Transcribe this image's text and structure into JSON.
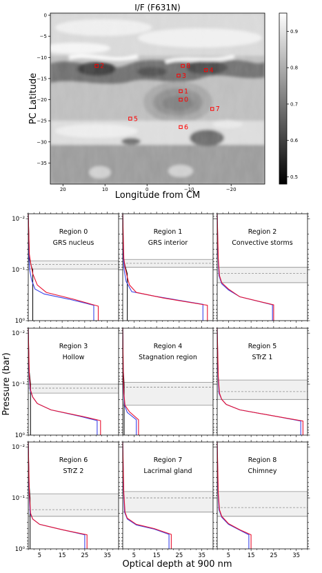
{
  "chart_data": [
    {
      "type": "heatmap",
      "title": "I/F (F631N)",
      "xlabel": "Longitude from CM",
      "ylabel": "PC Latitude",
      "xlim": [
        23,
        -28
      ],
      "ylim": [
        -40,
        0.5
      ],
      "x_ticks": [
        20,
        10,
        0,
        -10,
        -20
      ],
      "x_tick_labels": [
        "20",
        "10",
        "0",
        "−10",
        "−20"
      ],
      "y_ticks": [
        0,
        -5,
        -10,
        -15,
        -20,
        -25,
        -30,
        -35
      ],
      "y_tick_labels": [
        "0",
        "−5",
        "−10",
        "−15",
        "−20",
        "−25",
        "−30",
        "−35"
      ],
      "colorbar": {
        "min": 0.48,
        "max": 0.95,
        "ticks": [
          0.5,
          0.6,
          0.7,
          0.8,
          0.9
        ],
        "tick_labels": [
          "0.5",
          "0.6",
          "0.7",
          "0.8",
          "0.9"
        ],
        "colormap": "gray"
      },
      "regions": [
        {
          "id": "0",
          "lon": -8,
          "lat": -20
        },
        {
          "id": "1",
          "lon": -8,
          "lat": -18
        },
        {
          "id": "2",
          "lon": 12,
          "lat": -12
        },
        {
          "id": "3",
          "lon": -7.5,
          "lat": -14.3
        },
        {
          "id": "4",
          "lon": -14,
          "lat": -13
        },
        {
          "id": "5",
          "lon": 4,
          "lat": -24.5
        },
        {
          "id": "6",
          "lon": -8,
          "lat": -26.5
        },
        {
          "id": "7",
          "lon": -15.5,
          "lat": -22.2
        },
        {
          "id": "8",
          "lon": -8.5,
          "lat": -12
        }
      ],
      "marker_color": "#ff0000"
    },
    {
      "type": "line",
      "shared_xlabel": "Optical depth at 900 nm",
      "shared_ylabel": "Pressure (bar)",
      "y_scale": "log",
      "y_inverted": true,
      "ylim": [
        1,
        0.008
      ],
      "y_ticks": [
        1,
        0.1,
        0.01
      ],
      "y_tick_labels": [
        "10⁰",
        "10⁻¹",
        "10⁻²"
      ],
      "xlim": [
        0,
        40
      ],
      "x_ticks": [
        5,
        15,
        25,
        35
      ],
      "x_tick_labels": [
        "5",
        "15",
        "25",
        "35"
      ],
      "colors": {
        "red": "#e8102f",
        "blue": "#3a43e8",
        "black": "#111111",
        "band_fill": "#f0f0f0",
        "band_edge": "#8c8c8c",
        "dashed": "#8c8c8c"
      },
      "panels": [
        {
          "region": "Region 0",
          "name": "GRS nucleus",
          "band": [
            0.067,
            0.097
          ],
          "dashed": 0.079,
          "red": [
            [
              0,
              0.008
            ],
            [
              0.5,
              0.05
            ],
            [
              1,
              0.072
            ],
            [
              2,
              0.12
            ],
            [
              4,
              0.2
            ],
            [
              8,
              0.28
            ],
            [
              20,
              0.38
            ],
            [
              31,
              0.52
            ],
            [
              31,
              1
            ]
          ],
          "blue": [
            [
              0,
              0.008
            ],
            [
              0.3,
              0.06
            ],
            [
              0.6,
              0.1
            ],
            [
              1.5,
              0.16
            ],
            [
              3,
              0.24
            ],
            [
              7,
              0.3
            ],
            [
              18,
              0.38
            ],
            [
              29,
              0.5
            ],
            [
              29,
              1
            ]
          ],
          "black": [
            [
              0,
              0.008
            ],
            [
              0.5,
              0.06
            ],
            [
              1.5,
              0.09
            ],
            [
              2,
              0.1
            ],
            [
              2,
              1
            ]
          ]
        },
        {
          "region": "Region 1",
          "name": "GRS interior",
          "band": [
            0.063,
            0.09
          ],
          "dashed": 0.075,
          "red": [
            [
              0,
              0.008
            ],
            [
              0.5,
              0.06
            ],
            [
              1,
              0.09
            ],
            [
              2,
              0.14
            ],
            [
              3,
              0.2
            ],
            [
              6,
              0.28
            ],
            [
              18,
              0.36
            ],
            [
              37.5,
              0.5
            ],
            [
              37.5,
              1
            ]
          ],
          "blue": [
            [
              0,
              0.008
            ],
            [
              0.3,
              0.06
            ],
            [
              0.6,
              0.1
            ],
            [
              1.5,
              0.17
            ],
            [
              4,
              0.27
            ],
            [
              14,
              0.33
            ],
            [
              35.5,
              0.48
            ],
            [
              35.5,
              1
            ]
          ],
          "black": [
            [
              0,
              0.008
            ],
            [
              0.3,
              0.06
            ],
            [
              1.2,
              0.09
            ],
            [
              2,
              0.12
            ],
            [
              2,
              1
            ]
          ]
        },
        {
          "region": "Region 2",
          "name": "Convective storms",
          "band": [
            0.09,
            0.18
          ],
          "dashed": 0.118,
          "red": [
            [
              0,
              0.008
            ],
            [
              0.5,
              0.06
            ],
            [
              1,
              0.13
            ],
            [
              2,
              0.18
            ],
            [
              5,
              0.24
            ],
            [
              10,
              0.34
            ],
            [
              25,
              0.49
            ],
            [
              25,
              1
            ]
          ],
          "blue": [
            [
              0,
              0.008
            ],
            [
              0.4,
              0.06
            ],
            [
              0.8,
              0.13
            ],
            [
              2,
              0.19
            ],
            [
              5,
              0.25
            ],
            [
              10,
              0.34
            ],
            [
              24.5,
              0.49
            ],
            [
              24.5,
              1
            ]
          ],
          "black": []
        },
        {
          "region": "Region 3",
          "name": "Hollow",
          "band": [
            0.1,
            0.15
          ],
          "dashed": 0.12,
          "red": [
            [
              0,
              0.008
            ],
            [
              0.5,
              0.07
            ],
            [
              1,
              0.13
            ],
            [
              2,
              0.18
            ],
            [
              4,
              0.24
            ],
            [
              10,
              0.32
            ],
            [
              24,
              0.43
            ],
            [
              32,
              0.52
            ],
            [
              32,
              1
            ]
          ],
          "blue": [
            [
              0,
              0.008
            ],
            [
              0.4,
              0.07
            ],
            [
              0.8,
              0.13
            ],
            [
              2,
              0.18
            ],
            [
              4,
              0.24
            ],
            [
              10,
              0.32
            ],
            [
              23,
              0.43
            ],
            [
              30.5,
              0.52
            ],
            [
              30.5,
              1
            ]
          ],
          "black": [
            [
              0,
              0.008
            ],
            [
              0.3,
              0.05
            ],
            [
              1,
              0.1
            ],
            [
              1,
              1
            ]
          ]
        },
        {
          "region": "Region 4",
          "name": "Stagnation region",
          "band": [
            0.092,
            0.26
          ],
          "dashed": 0.115,
          "red": [
            [
              0,
              0.008
            ],
            [
              0.3,
              0.08
            ],
            [
              0.5,
              0.15
            ],
            [
              1,
              0.26
            ],
            [
              3,
              0.35
            ],
            [
              7,
              0.5
            ],
            [
              7,
              1
            ]
          ],
          "blue": [
            [
              0,
              0.008
            ],
            [
              0.2,
              0.08
            ],
            [
              0.4,
              0.15
            ],
            [
              0.8,
              0.26
            ],
            [
              2,
              0.36
            ],
            [
              6,
              0.5
            ],
            [
              6,
              1
            ]
          ],
          "black": [
            [
              0,
              0.008
            ],
            [
              0.2,
              0.05
            ],
            [
              0.6,
              0.1
            ],
            [
              0.6,
              1
            ]
          ]
        },
        {
          "region": "Region 5",
          "name": "STrZ 1",
          "band": [
            0.083,
            0.2
          ],
          "dashed": 0.14,
          "red": [
            [
              0,
              0.008
            ],
            [
              0.5,
              0.07
            ],
            [
              1,
              0.15
            ],
            [
              2,
              0.2
            ],
            [
              4,
              0.25
            ],
            [
              10,
              0.32
            ],
            [
              25,
              0.42
            ],
            [
              38,
              0.53
            ],
            [
              38,
              1
            ]
          ],
          "blue": [
            [
              0,
              0.008
            ],
            [
              0.4,
              0.07
            ],
            [
              0.8,
              0.15
            ],
            [
              2,
              0.2
            ],
            [
              4,
              0.25
            ],
            [
              10,
              0.32
            ],
            [
              25,
              0.42
            ],
            [
              37,
              0.53
            ],
            [
              37,
              1
            ]
          ],
          "black": []
        },
        {
          "region": "Region 6",
          "name": "STrZ 2",
          "band": [
            0.083,
            0.23
          ],
          "dashed": 0.17,
          "red": [
            [
              0,
              0.008
            ],
            [
              0.5,
              0.08
            ],
            [
              1,
              0.2
            ],
            [
              2,
              0.26
            ],
            [
              5,
              0.33
            ],
            [
              15,
              0.42
            ],
            [
              26,
              0.53
            ],
            [
              26,
              1
            ]
          ],
          "blue": [
            [
              0,
              0.008
            ],
            [
              0.4,
              0.08
            ],
            [
              0.8,
              0.2
            ],
            [
              2,
              0.26
            ],
            [
              5,
              0.33
            ],
            [
              15,
              0.42
            ],
            [
              25,
              0.53
            ],
            [
              25,
              1
            ]
          ],
          "black": [
            [
              0,
              0.008
            ],
            [
              0.3,
              0.05
            ],
            [
              0.8,
              0.1
            ],
            [
              0.8,
              1
            ]
          ]
        },
        {
          "region": "Region 7",
          "name": "Lacrimal gland",
          "band": [
            0.075,
            0.19
          ],
          "dashed": 0.1,
          "red": [
            [
              0,
              0.008
            ],
            [
              0.5,
              0.08
            ],
            [
              1,
              0.19
            ],
            [
              2,
              0.25
            ],
            [
              6,
              0.33
            ],
            [
              14,
              0.4
            ],
            [
              21.5,
              0.52
            ],
            [
              21.5,
              1
            ]
          ],
          "blue": [
            [
              0,
              0.008
            ],
            [
              0.4,
              0.08
            ],
            [
              0.8,
              0.19
            ],
            [
              2,
              0.26
            ],
            [
              6,
              0.34
            ],
            [
              14,
              0.41
            ],
            [
              20.5,
              0.52
            ],
            [
              20.5,
              1
            ]
          ],
          "black": []
        },
        {
          "region": "Region 8",
          "name": "Chimney",
          "band": [
            0.075,
            0.23
          ],
          "dashed": 0.155,
          "red": [
            [
              0,
              0.008
            ],
            [
              0.5,
              0.08
            ],
            [
              1,
              0.17
            ],
            [
              2,
              0.23
            ],
            [
              5,
              0.32
            ],
            [
              10,
              0.42
            ],
            [
              15,
              0.53
            ],
            [
              15,
              1
            ]
          ],
          "blue": [
            [
              0,
              0.008
            ],
            [
              0.4,
              0.08
            ],
            [
              0.8,
              0.17
            ],
            [
              2,
              0.24
            ],
            [
              5,
              0.33
            ],
            [
              10,
              0.43
            ],
            [
              14,
              0.53
            ],
            [
              14,
              1
            ]
          ],
          "black": []
        }
      ]
    }
  ]
}
